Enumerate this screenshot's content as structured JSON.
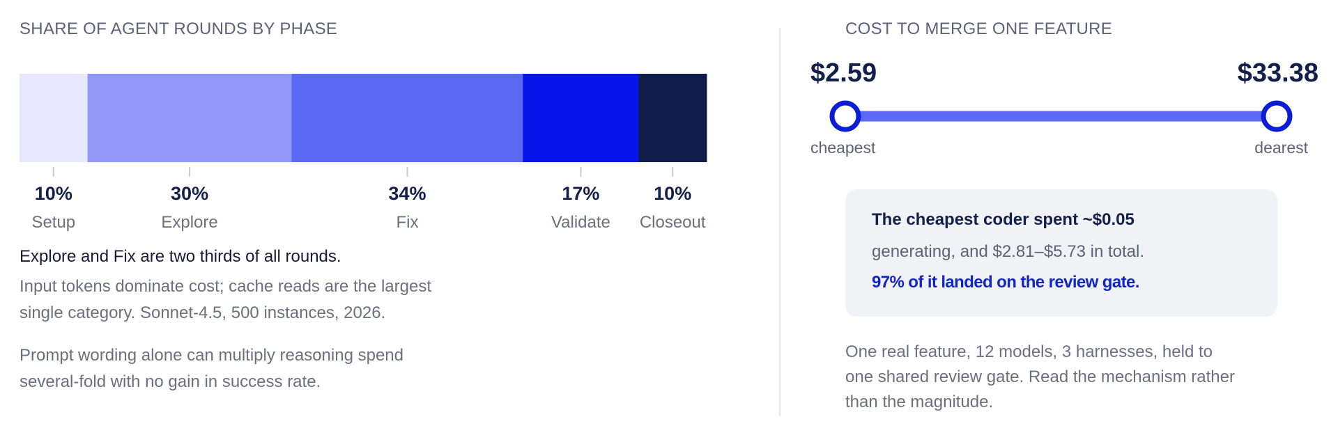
{
  "left": {
    "title": "SHARE OF AGENT ROUNDS BY PHASE",
    "headline": "Explore and Fix are two thirds of all rounds.",
    "note1_line1": "Input tokens dominate cost; cache reads are the largest",
    "note1_line2": "single category. Sonnet-4.5, 500 instances, 2026.",
    "note2_line1": "Prompt wording alone can multiply reasoning spend",
    "note2_line2": "several-fold with no gain in success rate."
  },
  "right": {
    "title": "COST TO MERGE ONE FEATURE",
    "min_label": "cheapest",
    "max_label": "dearest",
    "callout_line1": "The cheapest coder spent ~$0.05",
    "callout_line2": "generating, and $2.81–$5.73 in total.",
    "callout_line3": "97% of it landed on the review gate.",
    "footnote_line1": "One real feature, 12 models, 3 harnesses, held to",
    "footnote_line2": "one shared review gate. Read the mechanism rather",
    "footnote_line3": "than the magnitude."
  },
  "chart_data": [
    {
      "type": "bar",
      "stacked": true,
      "orientation": "horizontal",
      "title": "SHARE OF AGENT ROUNDS BY PHASE",
      "categories": [
        "Setup",
        "Explore",
        "Fix",
        "Validate",
        "Closeout"
      ],
      "values": [
        10,
        30,
        34,
        17,
        10
      ],
      "value_labels": [
        "10%",
        "30%",
        "34%",
        "17%",
        "10%"
      ],
      "colors": [
        "#e7e8fb",
        "#9198f7",
        "#5a68f4",
        "#0515e8",
        "#121d4a"
      ]
    },
    {
      "type": "range",
      "title": "COST TO MERGE ONE FEATURE",
      "min": 2.59,
      "max": 33.38,
      "min_label_value": "$2.59",
      "max_label_value": "$33.38",
      "line_color": "#5a68f4",
      "marker_color": "#0d1fd6"
    }
  ]
}
